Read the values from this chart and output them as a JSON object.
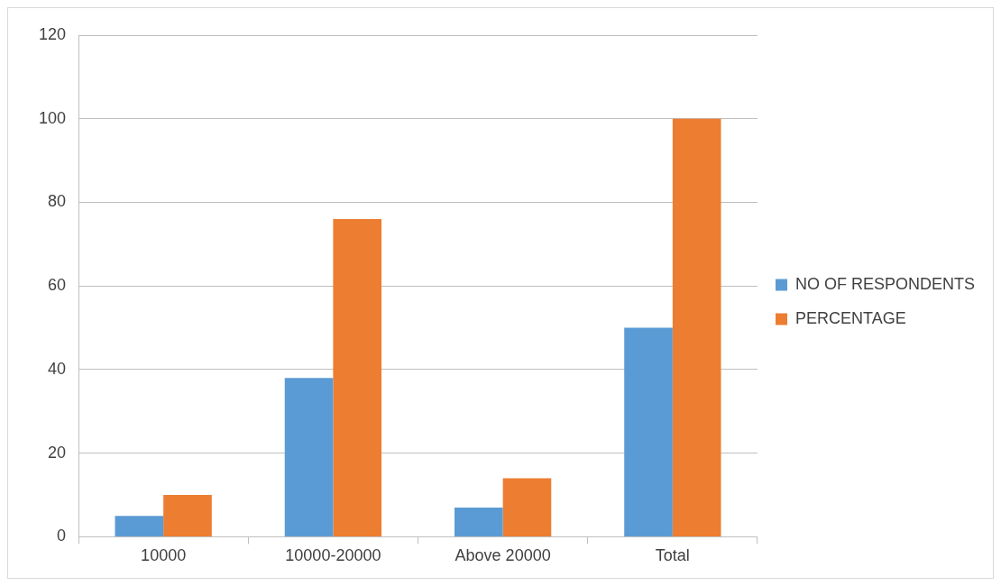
{
  "chart_data": {
    "type": "bar",
    "categories": [
      "10000",
      "10000-20000",
      "Above 20000",
      "Total"
    ],
    "series": [
      {
        "name": "NO OF RESPONDENTS",
        "color": "#5b9bd5",
        "values": [
          5,
          38,
          7,
          50
        ]
      },
      {
        "name": "PERCENTAGE",
        "color": "#ed7d31",
        "values": [
          10,
          76,
          14,
          100
        ]
      }
    ],
    "ylim": [
      0,
      120
    ],
    "yticks": [
      0,
      20,
      40,
      60,
      80,
      100,
      120
    ],
    "grid": "y",
    "legend": "right"
  }
}
